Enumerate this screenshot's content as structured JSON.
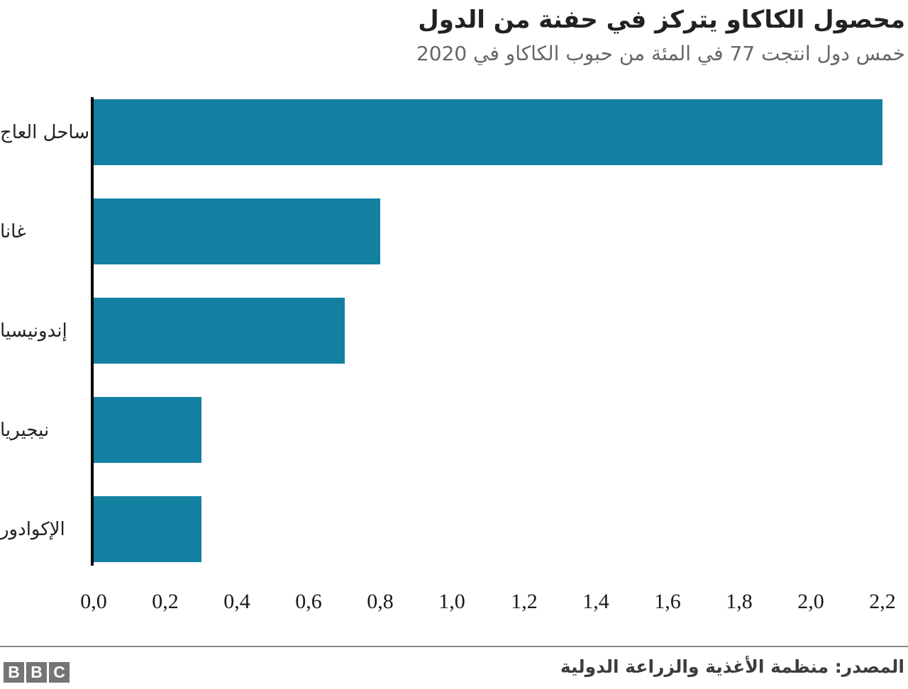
{
  "header": {
    "title": "محصول الكاكاو يتركز في حفنة من الدول",
    "subtitle": "خمس دول انتجت 77 في المئة من حبوب الكاكاو في 2020"
  },
  "chart_data": {
    "type": "bar",
    "orientation": "horizontal",
    "title": "محصول الكاكاو يتركز في حفنة من الدول",
    "subtitle": "خمس دول انتجت 77 في المئة من حبوب الكاكاو في 2020",
    "categories": [
      "ساحل العاج",
      "غانا",
      "إندونيسيا",
      "نيجيريا",
      "الإكوادور"
    ],
    "values": [
      2.2,
      0.8,
      0.7,
      0.3,
      0.3
    ],
    "xlim": [
      0,
      2.2
    ],
    "x_tick_labels": [
      "0,0",
      "0,2",
      "0,4",
      "0,6",
      "0,8",
      "1,0",
      "1,2",
      "1,4",
      "1,6",
      "1,8",
      "2,0",
      "2,2"
    ],
    "x_tick_values": [
      0,
      0.2,
      0.4,
      0.6,
      0.8,
      1.0,
      1.2,
      1.4,
      1.6,
      1.8,
      2.0,
      2.2
    ],
    "bar_color": "#1380A1",
    "grid": "off",
    "legend": "none",
    "decimal_separator": ","
  },
  "footer": {
    "logo_letters": [
      "B",
      "B",
      "C"
    ],
    "source": "المصدر: منظمة الأغذية والزراعة الدولية"
  },
  "colors": {
    "bar": "#1380A1",
    "title": "#222222",
    "subtitle": "#666666",
    "axis_line": "#000000",
    "divider": "#888888",
    "source_text": "#3d3d3d",
    "logo_background": "#757575"
  }
}
